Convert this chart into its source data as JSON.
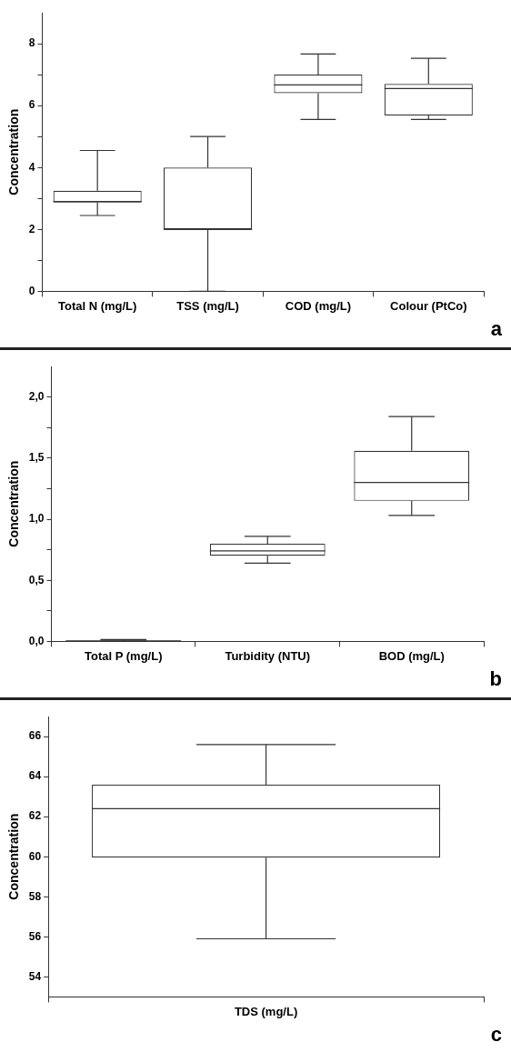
{
  "chart_data": [
    {
      "type": "box",
      "ylabel": "Concentration",
      "categories": [
        "Total N (mg/L)",
        "TSS (mg/L)",
        "COD (mg/L)",
        "Colour (PtCo)"
      ],
      "ylim": [
        0,
        9
      ],
      "yticks": [
        0,
        {
          "value": 1,
          "label": null
        },
        2,
        {
          "value": 3,
          "label": null
        },
        4,
        {
          "value": 5,
          "label": null
        },
        6,
        {
          "value": 7,
          "label": null
        },
        8
      ],
      "grid": false,
      "annotations": [
        "a"
      ],
      "boxes": [
        {
          "low": 2.45,
          "q1": 2.87,
          "median": 2.9,
          "q3": 3.25,
          "high": 4.55
        },
        {
          "low": 0,
          "q1": 2,
          "median": 2,
          "q3": 4,
          "high": 5
        },
        {
          "low": 5.55,
          "q1": 6.4,
          "median": 6.67,
          "q3": 7.0,
          "high": 7.67
        },
        {
          "low": 5.55,
          "q1": 5.68,
          "median": 6.55,
          "q3": 6.7,
          "high": 7.53
        }
      ]
    },
    {
      "type": "box",
      "ylabel": "Concentration",
      "categories": [
        "Total P (mg/L)",
        "Turbidity (NTU)",
        "BOD (mg/L)"
      ],
      "ylim": [
        0,
        2.25
      ],
      "yticks": [
        {
          "value": 0,
          "label": "0,0"
        },
        {
          "value": 0.25,
          "label": null
        },
        {
          "value": 0.5,
          "label": "0,5"
        },
        {
          "value": 0.75,
          "label": null
        },
        {
          "value": 1,
          "label": "1,0"
        },
        {
          "value": 1.25,
          "label": null
        },
        {
          "value": 1.5,
          "label": "1,5"
        },
        {
          "value": 1.75,
          "label": null
        },
        {
          "value": 2,
          "label": "2,0"
        }
      ],
      "grid": false,
      "annotations": [
        "b"
      ],
      "boxes": [
        {
          "low": 0.002,
          "q1": 0.004,
          "median": 0.005,
          "q3": 0.006,
          "high": 0.015
        },
        {
          "low": 0.64,
          "q1": 0.7,
          "median": 0.74,
          "q3": 0.8,
          "high": 0.86
        },
        {
          "low": 1.03,
          "q1": 1.15,
          "median": 1.3,
          "q3": 1.56,
          "high": 1.84
        }
      ]
    },
    {
      "type": "box",
      "ylabel": "Concentration",
      "categories": [
        "TDS (mg/L)"
      ],
      "ylim": [
        53,
        67
      ],
      "yticks": [
        54,
        56,
        58,
        60,
        62,
        64,
        66
      ],
      "grid": false,
      "annotations": [
        "c"
      ],
      "boxes": [
        {
          "low": 55.9,
          "q1": 59.95,
          "median": 62.4,
          "q3": 63.6,
          "high": 65.6
        }
      ]
    }
  ]
}
